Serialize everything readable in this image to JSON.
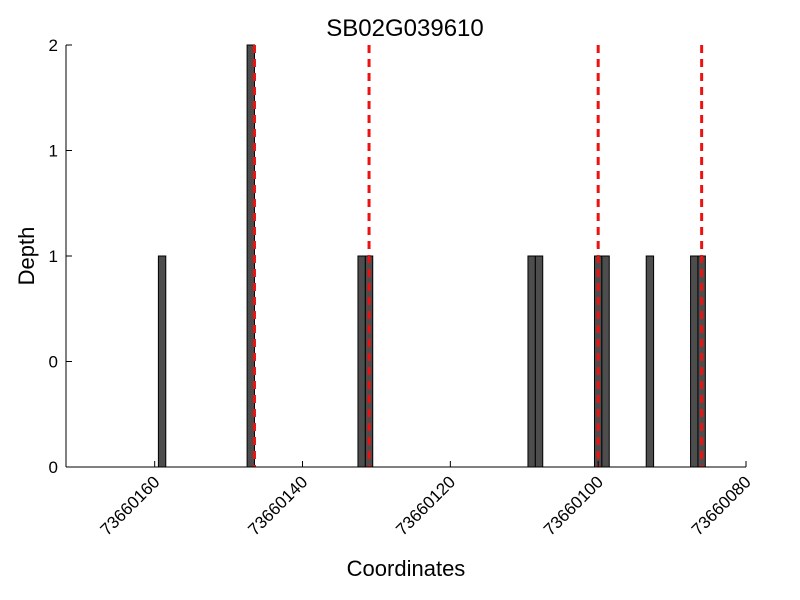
{
  "chart_data": {
    "type": "bar",
    "title": "SB02G039610",
    "xlabel": "Coordinates",
    "ylabel": "Depth",
    "x_reversed": true,
    "xlim": [
      73660172,
      73660080
    ],
    "ylim": [
      0,
      2
    ],
    "xticks": [
      73660160,
      73660140,
      73660120,
      73660100,
      73660080
    ],
    "yticks": [
      {
        "value": 0,
        "label": "0"
      },
      {
        "value": 0.5,
        "label": "0"
      },
      {
        "value": 1,
        "label": "1"
      },
      {
        "value": 1.5,
        "label": "1"
      },
      {
        "value": 2,
        "label": "2"
      }
    ],
    "bar_width": 1,
    "bar_color": "#4d4d4d",
    "marker_color": "#ee1111",
    "bars": [
      {
        "x": 73660159,
        "depth": 1
      },
      {
        "x": 73660147,
        "depth": 2
      },
      {
        "x": 73660132,
        "depth": 1
      },
      {
        "x": 73660131,
        "depth": 1
      },
      {
        "x": 73660109,
        "depth": 1
      },
      {
        "x": 73660108,
        "depth": 1
      },
      {
        "x": 73660100,
        "depth": 1
      },
      {
        "x": 73660099,
        "depth": 1
      },
      {
        "x": 73660093,
        "depth": 1
      },
      {
        "x": 73660087,
        "depth": 1
      },
      {
        "x": 73660086,
        "depth": 1
      }
    ],
    "markers": [
      73660146.5,
      73660131,
      73660100,
      73660086
    ]
  }
}
